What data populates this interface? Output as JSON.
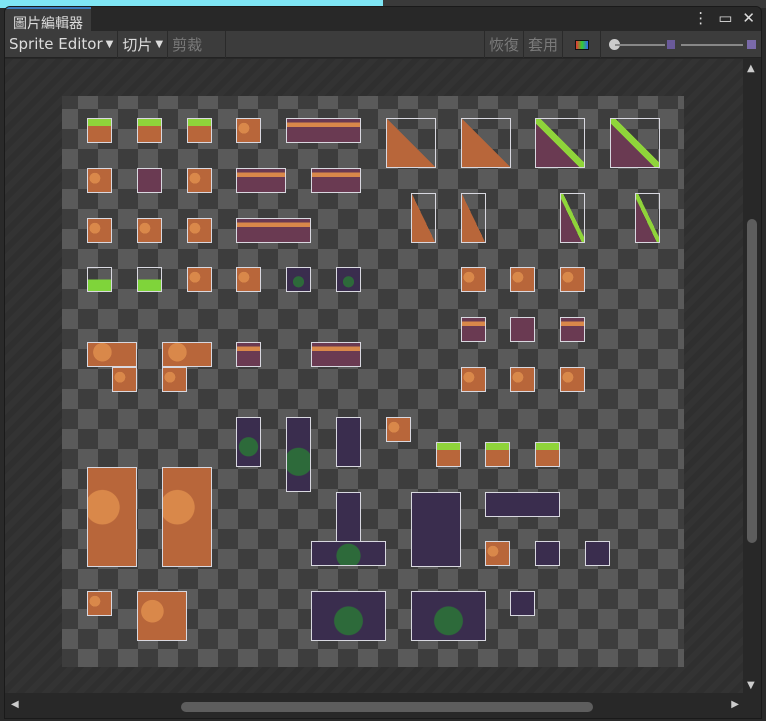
{
  "window": {
    "tab_title": "圖片編輯器",
    "menu_icon": "kebab-icon",
    "maximize_icon": "maximize-icon",
    "close_icon": "close-icon"
  },
  "toolbar": {
    "mode": "Sprite Editor",
    "slice": "切片",
    "trim": "剪裁",
    "revert": "恢復",
    "apply": "套用",
    "color_icon": "rgb-channel-icon",
    "zoom_level": 0.0
  },
  "colors": {
    "accent": "#3a79bb",
    "dirt": "#b8663a",
    "dark": "#6a3a52",
    "grass": "#8fd43a",
    "purple": "#3a2d4e"
  }
}
